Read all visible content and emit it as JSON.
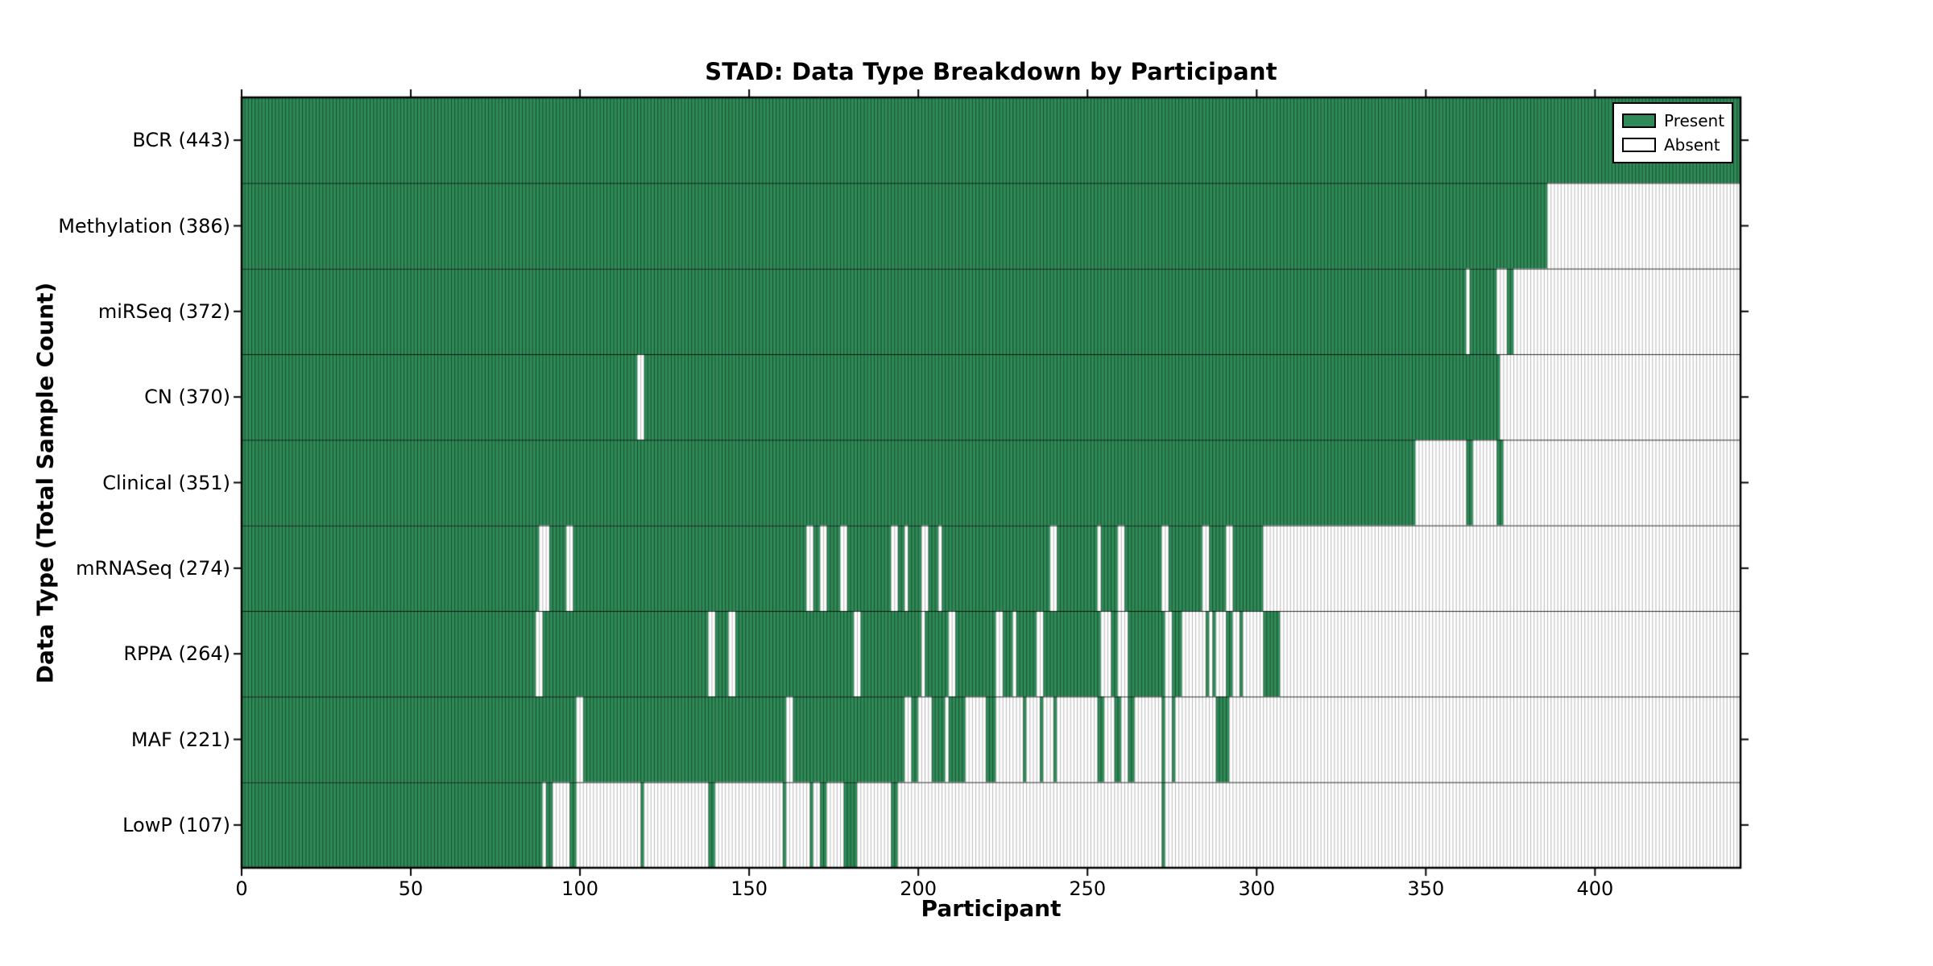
{
  "chart_data": {
    "type": "heatmap",
    "title": "STAD: Data Type Breakdown by Participant",
    "xlabel": "Participant",
    "ylabel": "Data Type (Total Sample Count)",
    "x_ticks": [
      0,
      50,
      100,
      150,
      200,
      250,
      300,
      350,
      400
    ],
    "x_range": [
      0,
      443
    ],
    "n_participants": 443,
    "grid": false,
    "legend_position": "upper right",
    "legend": [
      {
        "label": "Present",
        "color": "#2e8b57"
      },
      {
        "label": "Absent",
        "color": "#ffffff"
      }
    ],
    "colors": {
      "present": "#2e8b57",
      "absent": "#ffffff",
      "present_edge": "rgba(0,0,0,0.45)",
      "absent_edge": "#b8b8b8",
      "row_divider": "rgba(0,0,0,0.8)",
      "border": "#000000"
    },
    "rows": [
      {
        "name": "BCR",
        "count": 443,
        "label": "BCR (443)",
        "present": [
          [
            0,
            442
          ]
        ]
      },
      {
        "name": "Methylation",
        "count": 386,
        "label": "Methylation (386)",
        "present": [
          [
            0,
            385
          ]
        ]
      },
      {
        "name": "miRSeq",
        "count": 372,
        "label": "miRSeq (372)",
        "present": [
          [
            0,
            361
          ],
          [
            363,
            370
          ],
          [
            374,
            375
          ]
        ]
      },
      {
        "name": "CN",
        "count": 370,
        "label": "CN (370)",
        "present": [
          [
            0,
            116
          ],
          [
            119,
            371
          ]
        ]
      },
      {
        "name": "Clinical",
        "count": 351,
        "label": "Clinical (351)",
        "present": [
          [
            0,
            346
          ],
          [
            362,
            363
          ],
          [
            371,
            372
          ]
        ]
      },
      {
        "name": "mRNASeq",
        "count": 274,
        "label": "mRNASeq (274)",
        "present": [
          [
            0,
            87
          ],
          [
            91,
            95
          ],
          [
            98,
            166
          ],
          [
            169,
            170
          ],
          [
            173,
            176
          ],
          [
            179,
            191
          ],
          [
            194,
            195
          ],
          [
            197,
            200
          ],
          [
            203,
            205
          ],
          [
            207,
            238
          ],
          [
            241,
            252
          ],
          [
            254,
            258
          ],
          [
            261,
            271
          ],
          [
            274,
            283
          ],
          [
            286,
            290
          ],
          [
            293,
            301
          ]
        ]
      },
      {
        "name": "RPPA",
        "count": 264,
        "label": "RPPA (264)",
        "present": [
          [
            0,
            86
          ],
          [
            89,
            137
          ],
          [
            140,
            143
          ],
          [
            146,
            180
          ],
          [
            183,
            200
          ],
          [
            202,
            208
          ],
          [
            211,
            222
          ],
          [
            225,
            227
          ],
          [
            229,
            234
          ],
          [
            237,
            253
          ],
          [
            257,
            258
          ],
          [
            262,
            272
          ],
          [
            275,
            277
          ],
          [
            285,
            285
          ],
          [
            287,
            287
          ],
          [
            291,
            292
          ],
          [
            295,
            295
          ],
          [
            302,
            306
          ]
        ]
      },
      {
        "name": "MAF",
        "count": 221,
        "label": "MAF (221)",
        "present": [
          [
            0,
            98
          ],
          [
            101,
            160
          ],
          [
            163,
            195
          ],
          [
            198,
            199
          ],
          [
            204,
            207
          ],
          [
            209,
            213
          ],
          [
            220,
            222
          ],
          [
            231,
            231
          ],
          [
            236,
            236
          ],
          [
            240,
            240
          ],
          [
            253,
            254
          ],
          [
            258,
            259
          ],
          [
            262,
            263
          ],
          [
            272,
            272
          ],
          [
            275,
            275
          ],
          [
            288,
            291
          ]
        ]
      },
      {
        "name": "LowP",
        "count": 107,
        "label": "LowP (107)",
        "present": [
          [
            0,
            88
          ],
          [
            90,
            91
          ],
          [
            97,
            98
          ],
          [
            118,
            118
          ],
          [
            138,
            139
          ],
          [
            160,
            160
          ],
          [
            168,
            168
          ],
          [
            171,
            172
          ],
          [
            178,
            181
          ],
          [
            192,
            193
          ],
          [
            272,
            272
          ]
        ]
      }
    ]
  }
}
